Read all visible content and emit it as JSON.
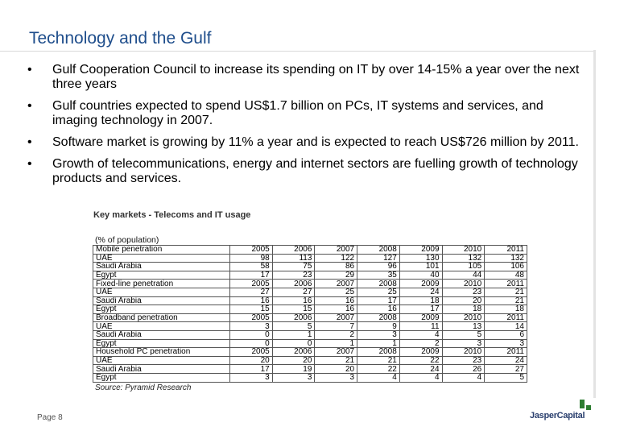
{
  "slide": {
    "title": "Technology and the Gulf",
    "bullet_glyph": "•",
    "bullets": [
      "Gulf Cooperation Council to increase its spending on IT by over 14-15% a year over the next three years",
      "Gulf countries expected to spend US$1.7 billion on PCs, IT systems and services, and imaging technology in 2007.",
      "Software market is growing by 11% a year and is expected to reach US$726 million by 2011.",
      "Growth of telecommunications, energy and internet sectors are fuelling growth of technology products and services."
    ],
    "page_label": "Page 8"
  },
  "table": {
    "title": "Key markets - Telecoms and IT usage",
    "unit_note": "(% of population)",
    "source": "Source: Pyramid Research",
    "sections": [
      {
        "header": "Mobile penetration",
        "years": [
          "2005",
          "2006",
          "2007",
          "2008",
          "2009",
          "2010",
          "2011"
        ],
        "rows": [
          {
            "country": "UAE",
            "values": [
              "98",
              "113",
              "122",
              "127",
              "130",
              "132",
              "132"
            ]
          },
          {
            "country": "Saudi Arabia",
            "values": [
              "58",
              "75",
              "86",
              "96",
              "101",
              "105",
              "106"
            ]
          },
          {
            "country": "Egypt",
            "values": [
              "17",
              "23",
              "29",
              "35",
              "40",
              "44",
              "48"
            ]
          }
        ]
      },
      {
        "header": "Fixed-line penetration",
        "years": [
          "2005",
          "2006",
          "2007",
          "2008",
          "2009",
          "2010",
          "2011"
        ],
        "rows": [
          {
            "country": "UAE",
            "values": [
              "27",
              "27",
              "25",
              "25",
              "24",
              "23",
              "21"
            ]
          },
          {
            "country": "Saudi Arabia",
            "values": [
              "16",
              "16",
              "16",
              "17",
              "18",
              "20",
              "21"
            ]
          },
          {
            "country": "Egypt",
            "values": [
              "15",
              "15",
              "16",
              "16",
              "17",
              "18",
              "18"
            ]
          }
        ]
      },
      {
        "header": "Broadband penetration",
        "years": [
          "2005",
          "2006",
          "2007",
          "2008",
          "2009",
          "2010",
          "2011"
        ],
        "rows": [
          {
            "country": "UAE",
            "values": [
              "3",
              "5",
              "7",
              "9",
              "11",
              "13",
              "14"
            ]
          },
          {
            "country": "Saudi Arabia",
            "values": [
              "0",
              "1",
              "2",
              "3",
              "4",
              "5",
              "6"
            ]
          },
          {
            "country": "Egypt",
            "values": [
              "0",
              "0",
              "1",
              "1",
              "2",
              "3",
              "3"
            ]
          }
        ]
      },
      {
        "header": "Household PC penetration",
        "years": [
          "2005",
          "2006",
          "2007",
          "2008",
          "2009",
          "2010",
          "2011"
        ],
        "rows": [
          {
            "country": "UAE",
            "values": [
              "20",
              "20",
              "21",
              "21",
              "22",
              "23",
              "24"
            ]
          },
          {
            "country": "Saudi Arabia",
            "values": [
              "17",
              "19",
              "20",
              "22",
              "24",
              "26",
              "27"
            ]
          },
          {
            "country": "Egypt",
            "values": [
              "3",
              "3",
              "3",
              "4",
              "4",
              "4",
              "5"
            ]
          }
        ]
      }
    ]
  },
  "logo": {
    "text": "JasperCapital",
    "mark_color": "#2e7d32",
    "text_color": "#2a3f6e"
  },
  "colors": {
    "title": "#1f4e8c",
    "rule": "#d9d9d9"
  }
}
